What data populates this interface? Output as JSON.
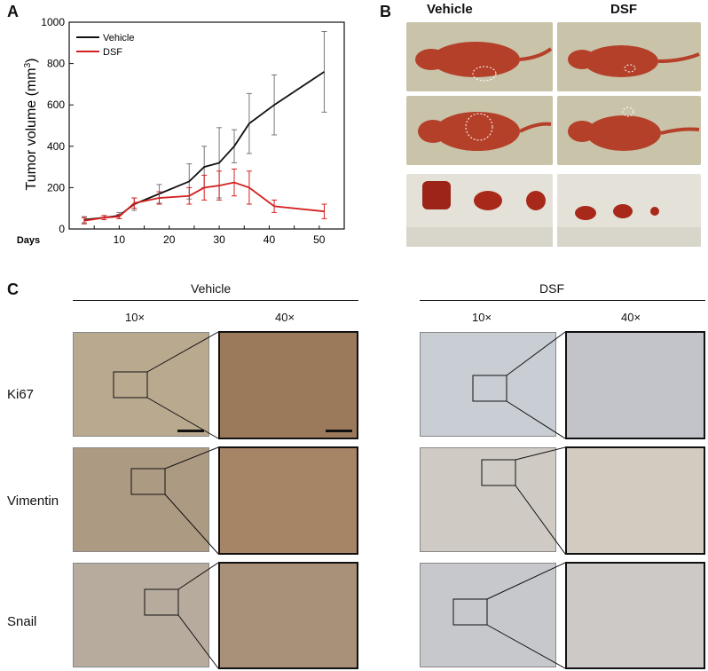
{
  "panels": {
    "a": "A",
    "b": "B",
    "c": "C"
  },
  "chart_data": {
    "type": "line",
    "ylabel": "Tumor volume (mm",
    "ylabel_sup": "3",
    "ylabel_close": ")",
    "xlabel": "Days",
    "xlim": [
      0,
      55
    ],
    "ylim": [
      0,
      1000
    ],
    "xticks": [
      5,
      10,
      15,
      20,
      25,
      30,
      35,
      40,
      45,
      50
    ],
    "yticks": [
      0,
      200,
      400,
      600,
      800,
      1000
    ],
    "legend_position": "top-left",
    "series": [
      {
        "name": "Vehicle",
        "color": "#111111",
        "x": [
          3,
          7,
          10,
          13,
          18,
          24,
          27,
          30,
          33,
          36,
          41,
          51
        ],
        "y": [
          45,
          55,
          65,
          120,
          170,
          230,
          300,
          320,
          400,
          510,
          600,
          760
        ],
        "err": [
          15,
          10,
          15,
          30,
          45,
          85,
          100,
          170,
          80,
          145,
          145,
          195
        ]
      },
      {
        "name": "DSF",
        "color": "#d42020",
        "x": [
          3,
          7,
          10,
          13,
          18,
          24,
          27,
          30,
          33,
          36,
          41,
          51
        ],
        "y": [
          40,
          55,
          60,
          125,
          150,
          160,
          200,
          210,
          225,
          200,
          110,
          85
        ],
        "err": [
          15,
          10,
          10,
          25,
          30,
          40,
          60,
          70,
          65,
          80,
          30,
          35
        ]
      }
    ]
  },
  "mouse_panel": {
    "vehicle_label": "Vehicle",
    "dsf_label": "DSF"
  },
  "ihc_panel": {
    "vehicle_label": "Vehicle",
    "dsf_label": "DSF",
    "mag_low": "10×",
    "mag_high": "40×",
    "rows": [
      {
        "label": "Ki67"
      },
      {
        "label": "Vimentin"
      },
      {
        "label": "Snail"
      }
    ]
  }
}
